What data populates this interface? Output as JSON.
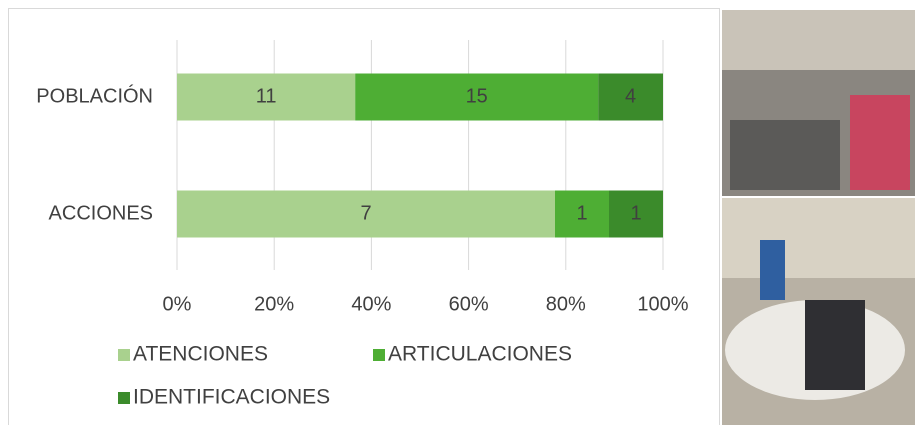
{
  "chart_data": {
    "type": "bar",
    "orientation": "horizontal",
    "stacking": "percent",
    "categories": [
      "POBLACIÓN",
      "ACCIONES"
    ],
    "series": [
      {
        "name": "ATENCIONES",
        "color": "#a9d18e",
        "values": [
          11,
          7
        ]
      },
      {
        "name": "ARTICULACIONES",
        "color": "#4eae34",
        "values": [
          15,
          1
        ]
      },
      {
        "name": "IDENTIFICACIONES",
        "color": "#3b8b2b",
        "values": [
          4,
          1
        ]
      }
    ],
    "xlim": [
      0,
      100
    ],
    "xticks": [
      {
        "value": 0,
        "label": "0%"
      },
      {
        "value": 20,
        "label": "20%"
      },
      {
        "value": 40,
        "label": "40%"
      },
      {
        "value": 60,
        "label": "60%"
      },
      {
        "value": 80,
        "label": "80%"
      },
      {
        "value": 100,
        "label": "100%"
      }
    ],
    "grid": true,
    "legend": "bottom"
  }
}
